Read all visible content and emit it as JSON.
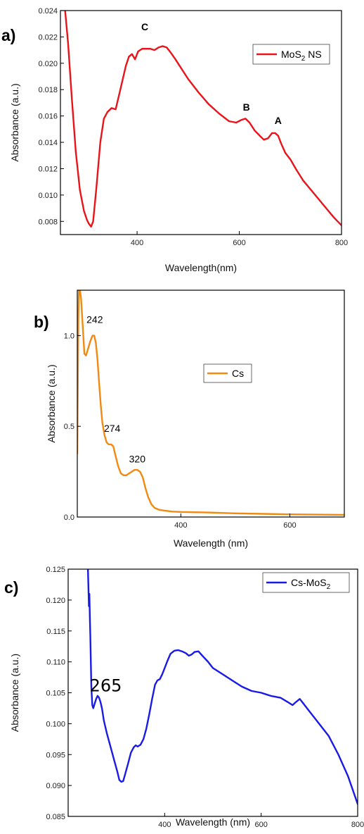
{
  "chart_data": [
    {
      "panel": "a)",
      "type": "line",
      "xlabel": "Wavelength(nm)",
      "ylabel": "Absorbance (a.u.)",
      "xlim": [
        250,
        800
      ],
      "ylim": [
        0.007,
        0.024
      ],
      "xticks": [
        400,
        600,
        800
      ],
      "yticks": [
        0.008,
        0.01,
        0.012,
        0.014,
        0.016,
        0.018,
        0.02,
        0.022,
        0.024
      ],
      "ytick_labels": [
        "0.008",
        "0.010",
        "0.012",
        "0.014",
        "0.016",
        "0.018",
        "0.020",
        "0.022",
        "0.024"
      ],
      "legend": {
        "name": "MoS",
        "sub": "2",
        "suffix": " NS",
        "position": "top-right"
      },
      "grid": false,
      "color": "#e8141a",
      "series": [
        {
          "name": "MoS2 NS",
          "x": [
            258,
            265,
            272,
            280,
            288,
            296,
            302,
            306,
            310,
            314,
            320,
            328,
            335,
            342,
            350,
            358,
            366,
            372,
            378,
            384,
            390,
            396,
            402,
            410,
            418,
            426,
            434,
            442,
            450,
            458,
            466,
            475,
            485,
            500,
            520,
            540,
            560,
            580,
            594,
            604,
            612,
            620,
            630,
            640,
            648,
            656,
            664,
            670,
            676,
            682,
            690,
            700,
            712,
            725,
            740,
            755,
            770,
            785,
            800
          ],
          "y": [
            0.0245,
            0.0215,
            0.0175,
            0.0133,
            0.0104,
            0.0088,
            0.0081,
            0.0078,
            0.0076,
            0.008,
            0.0104,
            0.014,
            0.0158,
            0.0163,
            0.0166,
            0.0165,
            0.0178,
            0.0188,
            0.0198,
            0.0205,
            0.0207,
            0.0203,
            0.0209,
            0.0211,
            0.0211,
            0.0211,
            0.021,
            0.0212,
            0.0213,
            0.0212,
            0.0208,
            0.0203,
            0.0197,
            0.0188,
            0.0178,
            0.0169,
            0.0162,
            0.0156,
            0.0155,
            0.0157,
            0.0158,
            0.0155,
            0.0149,
            0.0145,
            0.0142,
            0.0143,
            0.0147,
            0.0147,
            0.0145,
            0.0139,
            0.0132,
            0.0127,
            0.0119,
            0.0111,
            0.0104,
            0.0097,
            0.009,
            0.0083,
            0.0077
          ]
        }
      ],
      "annotations": [
        {
          "text": "C",
          "x": 415,
          "y": 0.0225,
          "bold": true
        },
        {
          "text": "B",
          "x": 614,
          "y": 0.0164,
          "bold": true
        },
        {
          "text": "A",
          "x": 676,
          "y": 0.0154,
          "bold": true
        }
      ]
    },
    {
      "panel": "b)",
      "type": "line",
      "xlabel": "Wavelength (nm)",
      "ylabel": "Absorbance (a.u.)",
      "xlim": [
        210,
        700
      ],
      "ylim": [
        0,
        1.25
      ],
      "xticks": [
        400,
        600
      ],
      "yticks": [
        0.0,
        0.5,
        1.0
      ],
      "ytick_labels": [
        "0.0",
        "0.5",
        "1.0"
      ],
      "legend": {
        "name": "Cs",
        "position": "center-right"
      },
      "grid": false,
      "color": "#f08a10",
      "series": [
        {
          "name": "Cs",
          "x": [
            210,
            211,
            212,
            213,
            215,
            217,
            220,
            223,
            226,
            230,
            234,
            238,
            241,
            244,
            247,
            250,
            253,
            256,
            260,
            264,
            268,
            272,
            276,
            280,
            285,
            290,
            295,
            300,
            305,
            310,
            315,
            320,
            325,
            330,
            335,
            340,
            346,
            352,
            360,
            370,
            385,
            400,
            450,
            500,
            600,
            700
          ],
          "y": [
            0.35,
            0.75,
            1.1,
            1.25,
            1.25,
            1.2,
            1.05,
            0.9,
            0.89,
            0.93,
            0.97,
            1.0,
            1.0,
            0.96,
            0.87,
            0.74,
            0.62,
            0.52,
            0.45,
            0.41,
            0.4,
            0.4,
            0.39,
            0.34,
            0.28,
            0.24,
            0.23,
            0.23,
            0.24,
            0.25,
            0.26,
            0.26,
            0.25,
            0.22,
            0.16,
            0.11,
            0.07,
            0.05,
            0.04,
            0.035,
            0.03,
            0.028,
            0.025,
            0.02,
            0.015,
            0.012
          ]
        }
      ],
      "annotations": [
        {
          "text": "242",
          "x": 242,
          "y": 1.07,
          "bold": false
        },
        {
          "text": "274",
          "x": 274,
          "y": 0.47,
          "bold": false
        },
        {
          "text": "320",
          "x": 320,
          "y": 0.3,
          "bold": false
        }
      ]
    },
    {
      "panel": "c)",
      "type": "line",
      "xlabel": "Wavelength (nm)",
      "ylabel": "Absorbance (a.u.)",
      "xlim": [
        200,
        800
      ],
      "ylim": [
        0.085,
        0.125
      ],
      "xticks": [
        400,
        600,
        800
      ],
      "yticks": [
        0.085,
        0.09,
        0.095,
        0.1,
        0.105,
        0.11,
        0.115,
        0.12,
        0.125
      ],
      "ytick_labels": [
        "0.085",
        "0.090",
        "0.095",
        "0.100",
        "0.105",
        "0.110",
        "0.115",
        "0.120",
        "0.125"
      ],
      "legend": {
        "name": "Cs-MoS",
        "sub": "2",
        "suffix": "",
        "position": "top-right"
      },
      "grid": false,
      "color": "#1a1ae6",
      "series": [
        {
          "name": "Cs-MoS2",
          "x": [
            241,
            242,
            243,
            244,
            245,
            246,
            247,
            248,
            250,
            252,
            254,
            256,
            258,
            261,
            264,
            267,
            270,
            274,
            280,
            288,
            295,
            302,
            306,
            310,
            314,
            318,
            324,
            330,
            336,
            340,
            344,
            350,
            356,
            362,
            368,
            374,
            380,
            385,
            390,
            395,
            400,
            406,
            412,
            420,
            428,
            436,
            444,
            450,
            456,
            462,
            470,
            478,
            490,
            500,
            520,
            540,
            560,
            580,
            600,
            620,
            640,
            655,
            665,
            672,
            680,
            690,
            700,
            720,
            740,
            760,
            780,
            800
          ],
          "y": [
            0.125,
            0.122,
            0.119,
            0.121,
            0.117,
            0.114,
            0.11,
            0.106,
            0.103,
            0.1025,
            0.103,
            0.1035,
            0.104,
            0.1045,
            0.1042,
            0.1035,
            0.1025,
            0.1005,
            0.0985,
            0.0962,
            0.0942,
            0.0922,
            0.0909,
            0.0906,
            0.0907,
            0.0918,
            0.0935,
            0.0953,
            0.0962,
            0.0965,
            0.0963,
            0.0966,
            0.0975,
            0.0992,
            0.1015,
            0.104,
            0.1063,
            0.107,
            0.1072,
            0.108,
            0.109,
            0.1102,
            0.1113,
            0.1118,
            0.1119,
            0.1117,
            0.1114,
            0.111,
            0.1112,
            0.1116,
            0.1117,
            0.111,
            0.11,
            0.109,
            0.108,
            0.107,
            0.106,
            0.1053,
            0.105,
            0.1045,
            0.1042,
            0.1035,
            0.103,
            0.1035,
            0.104,
            0.103,
            0.102,
            0.1,
            0.098,
            0.095,
            0.0915,
            0.087
          ]
        }
      ],
      "annotations": [
        {
          "text": "265",
          "x": 278,
          "y": 0.1052,
          "bold": false,
          "big": true
        }
      ]
    }
  ]
}
